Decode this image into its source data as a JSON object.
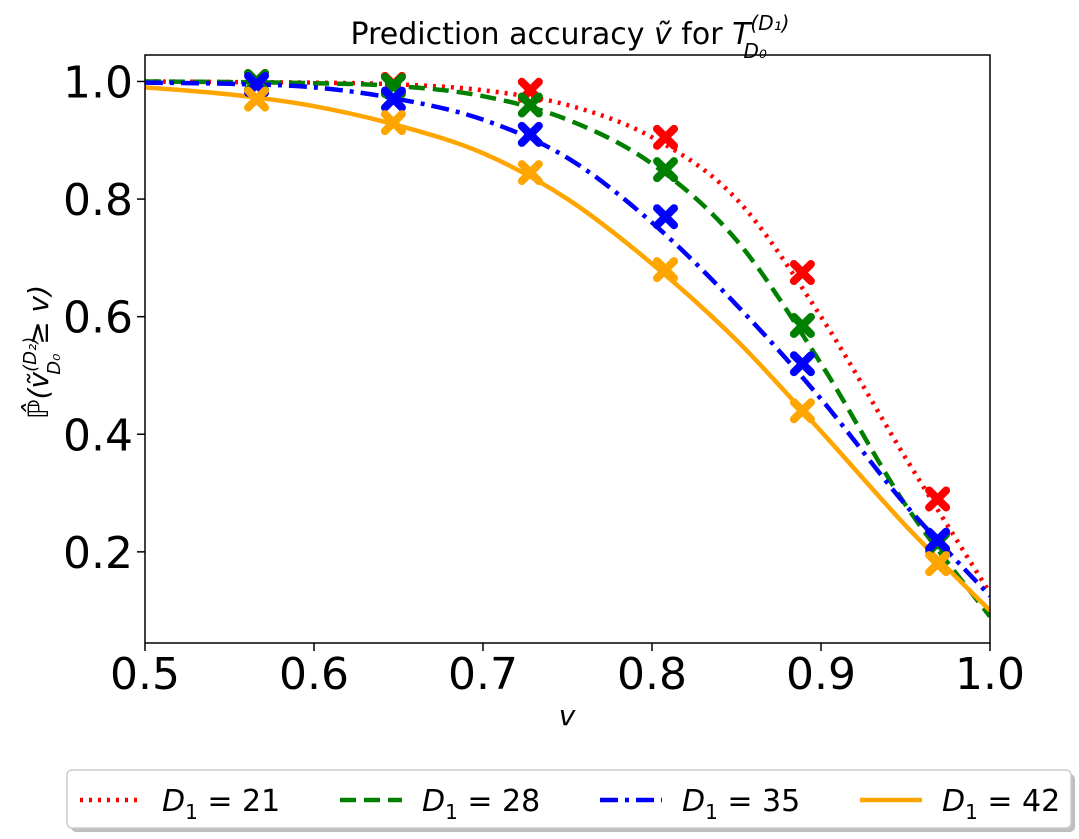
{
  "chart_data": {
    "type": "line",
    "title": "Prediction accuracy ṽ for T_{D_0}^{(D_1)}",
    "title_main": "Prediction accuracy ",
    "title_var": "ṽ",
    "title_for": " for ",
    "title_T": "T",
    "title_sub": "D₀",
    "title_sup": "(D₁)",
    "xlabel": "v",
    "ylabel": "ℙ̂(ṽ_{D_0}^{(D_2)} ≥ v)",
    "ylabel_text": "ℙ̂(ṽ",
    "ylabel_sup": "(D₂)",
    "ylabel_sub": "D₀",
    "ylabel_tail": " ≥ v)",
    "xlim": [
      0.5,
      1.0
    ],
    "ylim": [
      0.045,
      1.045
    ],
    "xticks": [
      0.5,
      0.6,
      0.7,
      0.8,
      0.9,
      1.0
    ],
    "xtick_labels": [
      "0.5",
      "0.6",
      "0.7",
      "0.8",
      "0.9",
      "1.0"
    ],
    "yticks": [
      0.2,
      0.4,
      0.6,
      0.8,
      1.0
    ],
    "ytick_labels": [
      "0.2",
      "0.4",
      "0.6",
      "0.8",
      "1.0"
    ],
    "legend_position": "bottom-center (below plot)",
    "series": [
      {
        "name": "D₁ = 21",
        "legend_label": "D1 = 21",
        "legend_var": "D",
        "legend_sub": "1",
        "legend_eq": " = 21",
        "color": "#ff0000",
        "linestyle": "dotted",
        "line_x": [
          0.5,
          0.55,
          0.6,
          0.65,
          0.7,
          0.75,
          0.8,
          0.85,
          0.9,
          0.95,
          1.0
        ],
        "line_y": [
          1.0,
          0.999,
          0.998,
          0.995,
          0.985,
          0.96,
          0.905,
          0.8,
          0.6,
          0.36,
          0.13
        ],
        "markers_x": [
          0.566,
          0.647,
          0.728,
          0.808,
          0.889,
          0.969
        ],
        "markers_y": [
          1.0,
          0.995,
          0.985,
          0.905,
          0.675,
          0.29
        ]
      },
      {
        "name": "D₁ = 28",
        "legend_label": "D1 = 28",
        "legend_var": "D",
        "legend_sub": "1",
        "legend_eq": " = 28",
        "color": "#008000",
        "linestyle": "dashed",
        "line_x": [
          0.5,
          0.55,
          0.6,
          0.65,
          0.7,
          0.75,
          0.8,
          0.85,
          0.9,
          0.95,
          1.0
        ],
        "line_y": [
          1.0,
          0.999,
          0.997,
          0.992,
          0.975,
          0.935,
          0.86,
          0.73,
          0.52,
          0.28,
          0.09
        ],
        "markers_x": [
          0.566,
          0.647,
          0.728,
          0.808,
          0.889,
          0.969
        ],
        "markers_y": [
          1.0,
          0.993,
          0.96,
          0.85,
          0.585,
          0.215
        ]
      },
      {
        "name": "D₁ = 35",
        "legend_label": "D1 = 35",
        "legend_var": "D",
        "legend_sub": "1",
        "legend_eq": " = 35",
        "color": "#0000ff",
        "linestyle": "dashdot",
        "line_x": [
          0.5,
          0.55,
          0.6,
          0.65,
          0.7,
          0.75,
          0.8,
          0.85,
          0.9,
          0.95,
          1.0
        ],
        "line_y": [
          0.998,
          0.996,
          0.99,
          0.97,
          0.935,
          0.87,
          0.76,
          0.62,
          0.46,
          0.28,
          0.125
        ],
        "markers_x": [
          0.566,
          0.647,
          0.728,
          0.808,
          0.889,
          0.969
        ],
        "markers_y": [
          0.995,
          0.97,
          0.91,
          0.77,
          0.52,
          0.22
        ]
      },
      {
        "name": "D₁ = 42",
        "legend_label": "D1 = 42",
        "legend_var": "D",
        "legend_sub": "1",
        "legend_eq": " = 42",
        "color": "#ffa500",
        "linestyle": "solid",
        "line_x": [
          0.5,
          0.55,
          0.6,
          0.65,
          0.7,
          0.75,
          0.8,
          0.85,
          0.9,
          0.95,
          1.0
        ],
        "line_y": [
          0.99,
          0.978,
          0.958,
          0.925,
          0.878,
          0.8,
          0.69,
          0.56,
          0.405,
          0.245,
          0.1
        ],
        "markers_x": [
          0.566,
          0.647,
          0.728,
          0.808,
          0.889,
          0.969
        ],
        "markers_y": [
          0.97,
          0.93,
          0.845,
          0.68,
          0.44,
          0.18
        ]
      }
    ]
  }
}
